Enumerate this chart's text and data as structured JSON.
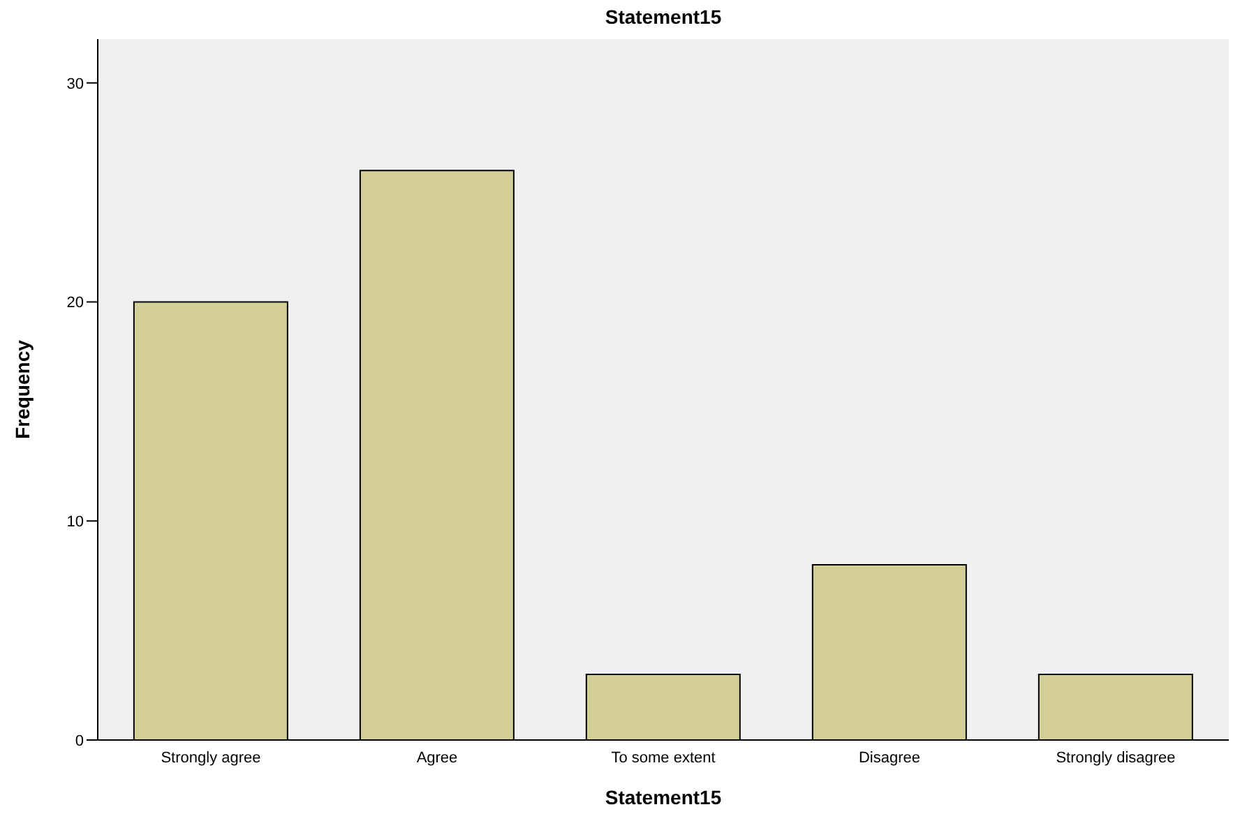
{
  "chart_data": {
    "type": "bar",
    "title": "Statement15",
    "xlabel": "Statement15",
    "ylabel": "Frequency",
    "categories": [
      "Strongly agree",
      "Agree",
      "To some extent",
      "Disagree",
      "Strongly disagree"
    ],
    "values": [
      20,
      26,
      3,
      8,
      3
    ],
    "color": "#d3ce96",
    "ylim": [
      0,
      32
    ],
    "yticks": [
      0,
      10,
      20,
      30
    ],
    "grid": false
  }
}
